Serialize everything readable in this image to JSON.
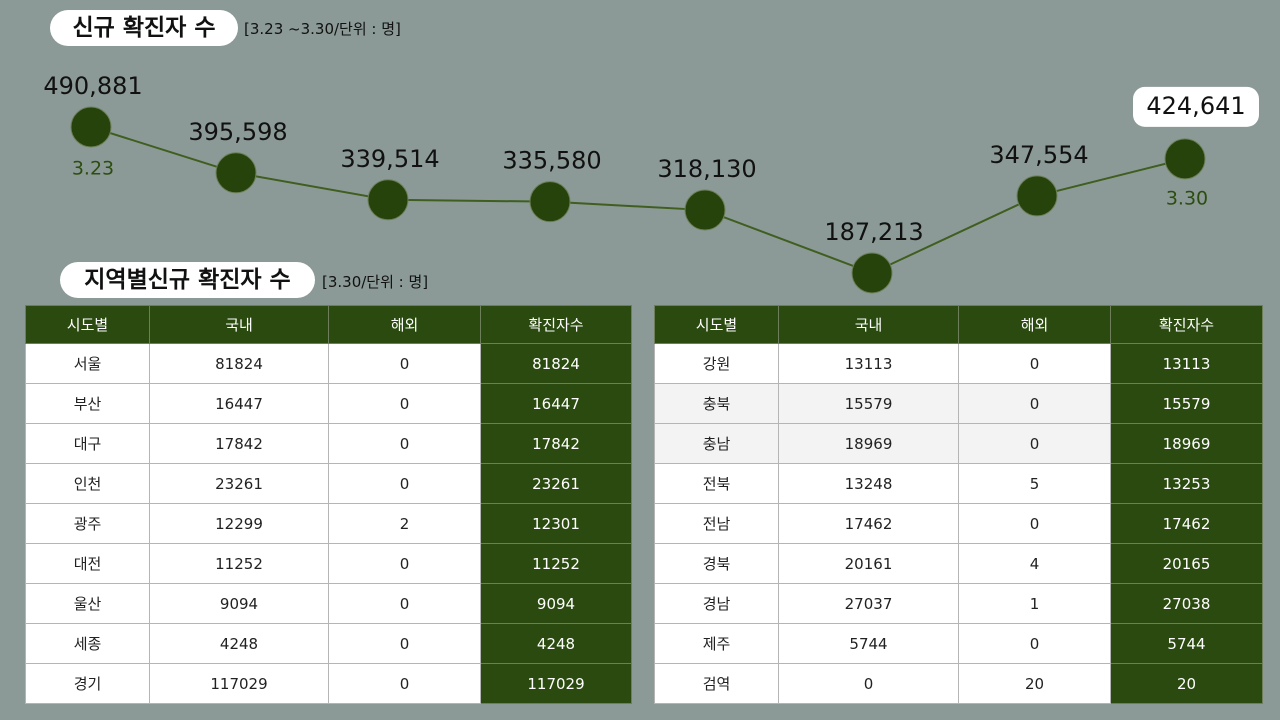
{
  "chart_data": {
    "type": "line",
    "title": "신규 확진자 수",
    "subtitle": "[3.23 ~3.30/단위 : 명]",
    "categories": [
      "3.23",
      null,
      null,
      null,
      null,
      null,
      null,
      "3.30"
    ],
    "values": [
      490881,
      395598,
      339514,
      335580,
      318130,
      187213,
      347554,
      424641
    ],
    "value_labels": [
      "490,881",
      "395,598",
      "339,514",
      "335,580",
      "318,130",
      "187,213",
      "347,554",
      "424,641"
    ],
    "color": "#3f5e1f",
    "marker_color": "#27430c"
  },
  "regional": {
    "title": "지역별신규 확진자 수",
    "subtitle": "[3.30/단위 : 명]",
    "tables": [
      {
        "header": [
          "시도별",
          "국내",
          "해외",
          "확진자수"
        ],
        "rows": [
          [
            "서울",
            81824,
            0,
            81824
          ],
          [
            "부산",
            16447,
            0,
            16447
          ],
          [
            "대구",
            17842,
            0,
            17842
          ],
          [
            "인천",
            23261,
            0,
            23261
          ],
          [
            "광주",
            12299,
            2,
            12301
          ],
          [
            "대전",
            11252,
            0,
            11252
          ],
          [
            "울산",
            9094,
            0,
            9094
          ],
          [
            "세종",
            4248,
            0,
            4248
          ],
          [
            "경기",
            117029,
            0,
            117029
          ]
        ]
      },
      {
        "header": [
          "시도별",
          "국내",
          "해외",
          "확진자수"
        ],
        "rows": [
          [
            "강원",
            13113,
            0,
            13113
          ],
          [
            "충북",
            15579,
            0,
            15579
          ],
          [
            "충남",
            18969,
            0,
            18969
          ],
          [
            "전북",
            13248,
            5,
            13253
          ],
          [
            "전남",
            17462,
            0,
            17462
          ],
          [
            "경북",
            20161,
            4,
            20165
          ],
          [
            "경남",
            27037,
            1,
            27038
          ],
          [
            "제주",
            5744,
            0,
            5744
          ],
          [
            "검역",
            0,
            20,
            20
          ]
        ]
      }
    ]
  }
}
